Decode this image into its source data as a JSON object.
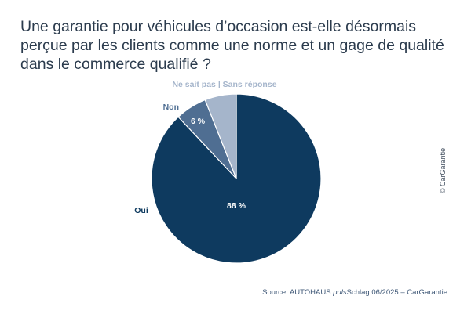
{
  "chart_data": {
    "type": "pie",
    "title": "Une garantie pour véhicules d’occasion est-elle désormais perçue par les clients comme une norme et un gage de qualité dans le commerce qualifié ?",
    "slices": [
      {
        "label": "Oui",
        "value": 88,
        "value_label": "88 %",
        "color": "#0e3a5f"
      },
      {
        "label": "Non",
        "value": 6,
        "value_label": "6 %",
        "color": "#4f6e92"
      },
      {
        "label": "Ne sait pas | Sans réponse",
        "value": 6,
        "value_label": "",
        "color": "#a5b5cb"
      }
    ],
    "start_angle_deg": 0,
    "direction": "clockwise"
  },
  "copyright": "© CarGarantie",
  "source": {
    "prefix": "Source: AUTOHAUS ",
    "italic": "puls",
    "suffix": "Schlag 06/2025 – CarGarantie"
  }
}
